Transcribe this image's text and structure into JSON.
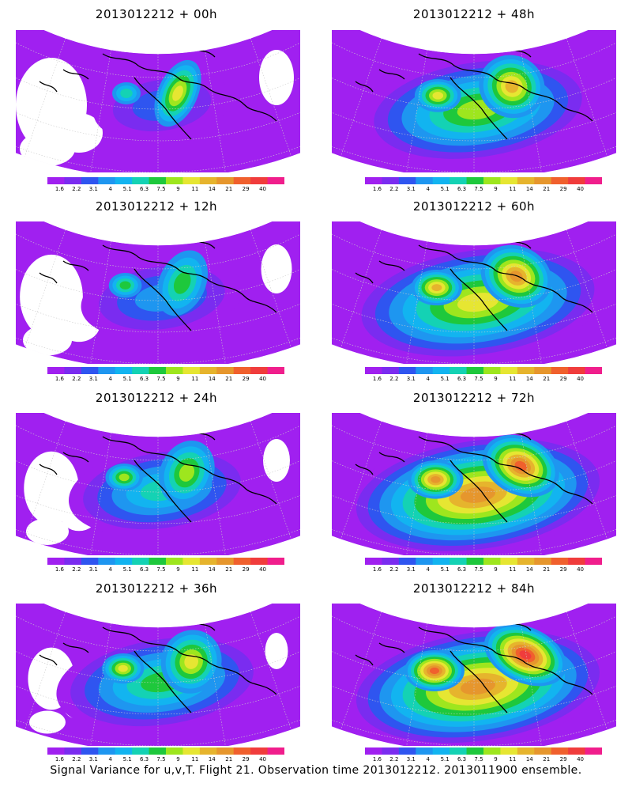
{
  "panels": [
    {
      "title": "2013012212 + 00h",
      "lead_h": 0
    },
    {
      "title": "2013012212 + 48h",
      "lead_h": 48
    },
    {
      "title": "2013012212 + 12h",
      "lead_h": 12
    },
    {
      "title": "2013012212 + 60h",
      "lead_h": 60
    },
    {
      "title": "2013012212 + 24h",
      "lead_h": 24
    },
    {
      "title": "2013012212 + 72h",
      "lead_h": 72
    },
    {
      "title": "2013012212 + 36h",
      "lead_h": 36
    },
    {
      "title": "2013012212 + 84h",
      "lead_h": 84
    }
  ],
  "colorbar": {
    "labels": [
      "1.6",
      "2.2",
      "3.1",
      "4",
      "5.1",
      "6.3",
      "7.5",
      "9",
      "11",
      "14",
      "21",
      "29",
      "40"
    ],
    "colors": [
      "#a020f0",
      "#7a2cf0",
      "#2f55f0",
      "#1e96f0",
      "#12b4f0",
      "#14d2b4",
      "#1ec83c",
      "#9ee61e",
      "#e6e632",
      "#e6b42d",
      "#e6962d",
      "#f0602d",
      "#f03c3c",
      "#f01e8c"
    ]
  },
  "footer": "Signal Variance for u,v,T. Flight 21. Observation time 2013012212. 2013011900 ensemble."
}
